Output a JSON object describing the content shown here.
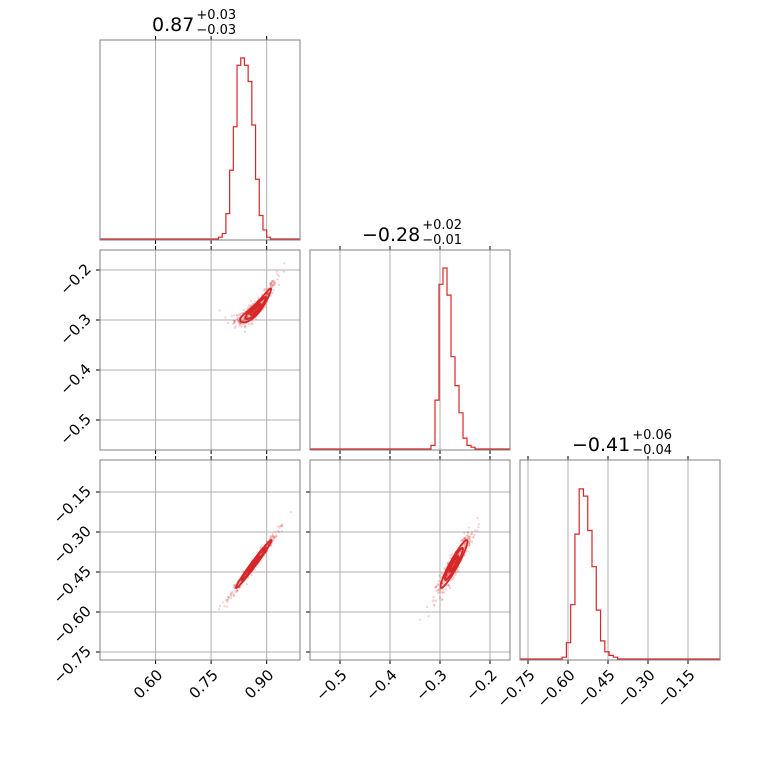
{
  "figure": {
    "background": "#ffffff",
    "line_color": "#d62728",
    "grid_color": "#b0b0b0",
    "frame_color": "#808080"
  },
  "chart_data": {
    "type": "corner",
    "grid": true,
    "panels": [
      {
        "id": "hist-p0",
        "kind": "histogram",
        "row": 0,
        "col": 0,
        "title": {
          "median": "0.87",
          "plus": "+0.03",
          "minus": "−0.03"
        },
        "xlim": [
          0.45,
          0.99
        ],
        "bins": {
          "start": 0.77,
          "width": 0.01,
          "counts": [
            0.01,
            0.03,
            0.14,
            0.38,
            0.62,
            0.96,
            1.0,
            0.96,
            0.87,
            0.63,
            0.33,
            0.13,
            0.05,
            0.01
          ]
        }
      },
      {
        "id": "hist-p1",
        "kind": "histogram",
        "row": 1,
        "col": 1,
        "title": {
          "median": "−0.28",
          "plus": "+0.02",
          "minus": "−0.01"
        },
        "xlim": [
          -0.56,
          -0.16
        ],
        "bins": {
          "start": -0.318,
          "width": 0.008,
          "counts": [
            0.02,
            0.27,
            0.91,
            1.0,
            0.85,
            0.51,
            0.35,
            0.2,
            0.06,
            0.02,
            0.01
          ]
        }
      },
      {
        "id": "hist-p2",
        "kind": "histogram",
        "row": 2,
        "col": 2,
        "title": {
          "median": "−0.41",
          "plus": "+0.06",
          "minus": "−0.04"
        },
        "xlim": [
          -0.78,
          -0.03
        ],
        "bins": {
          "start": -0.622,
          "width": 0.016,
          "counts": [
            0.01,
            0.09,
            0.3,
            0.69,
            0.94,
            0.9,
            0.71,
            0.51,
            0.27,
            0.1,
            0.04,
            0.02,
            0.01
          ]
        }
      },
      {
        "id": "scatter-p0-p1",
        "kind": "scatter_contour",
        "row": 1,
        "col": 0,
        "xlim": [
          0.45,
          0.99
        ],
        "ylim": [
          -0.56,
          -0.16
        ],
        "center": [
          0.87,
          -0.28
        ],
        "spread": [
          0.028,
          0.022
        ],
        "correlation": 0.93,
        "curvature": 0.8,
        "contours": [
          0.5,
          1.0,
          1.5
        ]
      },
      {
        "id": "scatter-p0-p2",
        "kind": "scatter_contour",
        "row": 2,
        "col": 0,
        "xlim": [
          0.45,
          0.99
        ],
        "ylim": [
          -0.78,
          -0.03
        ],
        "center": [
          0.865,
          -0.42
        ],
        "spread": [
          0.032,
          0.06
        ],
        "correlation": 0.985,
        "curvature": 0.0,
        "contours": [
          0.5,
          1.0,
          1.5
        ]
      },
      {
        "id": "scatter-p1-p2",
        "kind": "scatter_contour",
        "row": 2,
        "col": 1,
        "xlim": [
          -0.56,
          -0.16
        ],
        "ylim": [
          -0.78,
          -0.03
        ],
        "center": [
          -0.272,
          -0.42
        ],
        "spread": [
          0.018,
          0.06
        ],
        "correlation": 0.94,
        "curvature": 0.0,
        "contours": [
          0.5,
          1.0,
          1.5
        ]
      }
    ],
    "ticks": {
      "x_col0": {
        "values": [
          0.6,
          0.75,
          0.9
        ],
        "labels": [
          "0.60",
          "0.75",
          "0.90"
        ]
      },
      "x_col1": {
        "values": [
          -0.5,
          -0.4,
          -0.3,
          -0.2
        ],
        "labels": [
          "−0.5",
          "−0.4",
          "−0.3",
          "−0.2"
        ]
      },
      "x_col2": {
        "values": [
          -0.75,
          -0.6,
          -0.45,
          -0.3,
          -0.15
        ],
        "labels": [
          "−0.75",
          "−0.60",
          "−0.45",
          "−0.30",
          "−0.15"
        ]
      },
      "y_row1": {
        "values": [
          -0.2,
          -0.3,
          -0.4,
          -0.5
        ],
        "labels": [
          "−0.2",
          "−0.3",
          "−0.4",
          "−0.5"
        ]
      },
      "y_row2": {
        "values": [
          -0.15,
          -0.3,
          -0.45,
          -0.6,
          -0.75
        ],
        "labels": [
          "−0.15",
          "−0.30",
          "−0.45",
          "−0.60",
          "−0.75"
        ]
      }
    }
  }
}
